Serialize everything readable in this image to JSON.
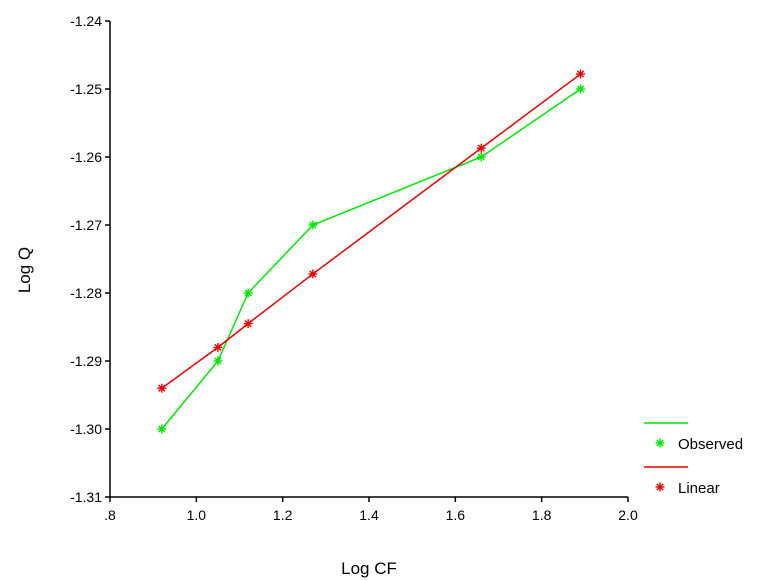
{
  "chart_data": {
    "type": "line",
    "xlabel": "Log CF",
    "ylabel": "Log Q",
    "xlim": [
      0.8,
      2.0
    ],
    "ylim": [
      -1.31,
      -1.24
    ],
    "x_ticks": [
      ".8",
      "1.0",
      "1.2",
      "1.4",
      "1.6",
      "1.8",
      "2.0"
    ],
    "x_tick_values": [
      0.8,
      1.0,
      1.2,
      1.4,
      1.6,
      1.8,
      2.0
    ],
    "y_ticks": [
      "-1.24",
      "-1.25",
      "-1.26",
      "-1.27",
      "-1.28",
      "-1.29",
      "-1.30",
      "-1.31"
    ],
    "y_tick_values": [
      -1.24,
      -1.25,
      -1.26,
      -1.27,
      -1.28,
      -1.29,
      -1.3,
      -1.31
    ],
    "grid": false,
    "legend_position": "bottom-right",
    "series": [
      {
        "name": "Observed",
        "color": "#00e600",
        "marker": "asterisk",
        "x": [
          0.92,
          1.05,
          1.12,
          1.27,
          1.66,
          1.89
        ],
        "y": [
          -1.3,
          -1.29,
          -1.28,
          -1.27,
          -1.26,
          -1.25
        ]
      },
      {
        "name": "Linear",
        "color": "#e60000",
        "marker": "asterisk",
        "x": [
          0.92,
          1.05,
          1.12,
          1.27,
          1.66,
          1.89
        ],
        "y": [
          -1.294,
          -1.288,
          -1.2845,
          -1.2772,
          -1.2587,
          -1.2478
        ]
      }
    ]
  }
}
